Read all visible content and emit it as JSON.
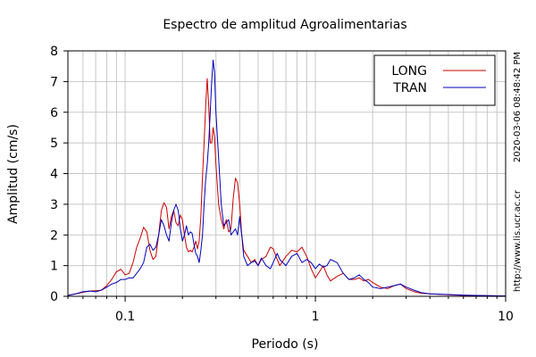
{
  "chart_data": {
    "type": "line",
    "title": "Espectro de amplitud Agroalimentarias",
    "xlabel": "Periodo (s)",
    "ylabel": "Amplitud (cm/s)",
    "x_scale": "log",
    "xlim": [
      0.05,
      10
    ],
    "ylim": [
      0,
      8
    ],
    "x_ticks": [
      {
        "value": 0.1,
        "label": "0.1"
      },
      {
        "value": 1,
        "label": "1"
      },
      {
        "value": 10,
        "label": "10"
      }
    ],
    "y_ticks": [
      0,
      1,
      2,
      3,
      4,
      5,
      6,
      7,
      8
    ],
    "grid": true,
    "legend_position": "top-right",
    "side_texts": [
      "2020-03-06 08:48:42 PM",
      "http://www.lis.ucr.ac.cr"
    ],
    "series": [
      {
        "name": "LONG",
        "color": "#cc0000",
        "points": [
          [
            0.05,
            0.03
          ],
          [
            0.055,
            0.08
          ],
          [
            0.06,
            0.13
          ],
          [
            0.065,
            0.17
          ],
          [
            0.07,
            0.18
          ],
          [
            0.075,
            0.2
          ],
          [
            0.08,
            0.35
          ],
          [
            0.085,
            0.55
          ],
          [
            0.09,
            0.8
          ],
          [
            0.095,
            0.88
          ],
          [
            0.1,
            0.7
          ],
          [
            0.105,
            0.75
          ],
          [
            0.11,
            1.1
          ],
          [
            0.115,
            1.6
          ],
          [
            0.12,
            1.9
          ],
          [
            0.125,
            2.25
          ],
          [
            0.13,
            2.1
          ],
          [
            0.135,
            1.5
          ],
          [
            0.14,
            1.2
          ],
          [
            0.145,
            1.3
          ],
          [
            0.15,
            2.0
          ],
          [
            0.155,
            2.8
          ],
          [
            0.16,
            3.05
          ],
          [
            0.165,
            2.9
          ],
          [
            0.17,
            2.2
          ],
          [
            0.175,
            2.6
          ],
          [
            0.18,
            2.8
          ],
          [
            0.185,
            2.4
          ],
          [
            0.19,
            2.3
          ],
          [
            0.195,
            2.65
          ],
          [
            0.2,
            2.5
          ],
          [
            0.205,
            2.0
          ],
          [
            0.21,
            1.6
          ],
          [
            0.215,
            1.45
          ],
          [
            0.22,
            1.5
          ],
          [
            0.225,
            1.45
          ],
          [
            0.23,
            1.6
          ],
          [
            0.235,
            1.8
          ],
          [
            0.24,
            1.55
          ],
          [
            0.245,
            1.8
          ],
          [
            0.25,
            2.6
          ],
          [
            0.255,
            3.9
          ],
          [
            0.26,
            5.0
          ],
          [
            0.265,
            6.2
          ],
          [
            0.27,
            7.1
          ],
          [
            0.275,
            6.2
          ],
          [
            0.28,
            5.0
          ],
          [
            0.285,
            5.0
          ],
          [
            0.29,
            5.5
          ],
          [
            0.295,
            5.2
          ],
          [
            0.3,
            4.3
          ],
          [
            0.31,
            3.0
          ],
          [
            0.32,
            2.5
          ],
          [
            0.33,
            2.2
          ],
          [
            0.34,
            2.5
          ],
          [
            0.35,
            2.1
          ],
          [
            0.36,
            2.2
          ],
          [
            0.37,
            3.2
          ],
          [
            0.38,
            3.85
          ],
          [
            0.39,
            3.7
          ],
          [
            0.4,
            3.0
          ],
          [
            0.41,
            2.0
          ],
          [
            0.42,
            1.5
          ],
          [
            0.44,
            1.3
          ],
          [
            0.46,
            1.1
          ],
          [
            0.48,
            1.2
          ],
          [
            0.5,
            1.0
          ],
          [
            0.52,
            1.2
          ],
          [
            0.55,
            1.3
          ],
          [
            0.58,
            1.6
          ],
          [
            0.6,
            1.55
          ],
          [
            0.63,
            1.2
          ],
          [
            0.65,
            1.0
          ],
          [
            0.7,
            1.3
          ],
          [
            0.75,
            1.5
          ],
          [
            0.8,
            1.45
          ],
          [
            0.85,
            1.6
          ],
          [
            0.9,
            1.3
          ],
          [
            0.95,
            0.9
          ],
          [
            1.0,
            0.6
          ],
          [
            1.05,
            0.8
          ],
          [
            1.1,
            1.0
          ],
          [
            1.15,
            0.7
          ],
          [
            1.2,
            0.5
          ],
          [
            1.3,
            0.65
          ],
          [
            1.4,
            0.75
          ],
          [
            1.5,
            0.55
          ],
          [
            1.6,
            0.55
          ],
          [
            1.7,
            0.6
          ],
          [
            1.8,
            0.5
          ],
          [
            1.9,
            0.55
          ],
          [
            2.0,
            0.45
          ],
          [
            2.2,
            0.3
          ],
          [
            2.4,
            0.25
          ],
          [
            2.6,
            0.35
          ],
          [
            2.8,
            0.4
          ],
          [
            3.0,
            0.25
          ],
          [
            3.3,
            0.15
          ],
          [
            3.6,
            0.1
          ],
          [
            4.0,
            0.08
          ],
          [
            5.0,
            0.05
          ],
          [
            6.0,
            0.03
          ],
          [
            7.0,
            0.02
          ],
          [
            8.0,
            0.02
          ],
          [
            10.0,
            0.01
          ]
        ]
      },
      {
        "name": "TRAN",
        "color": "#0000bb",
        "points": [
          [
            0.05,
            0.03
          ],
          [
            0.055,
            0.08
          ],
          [
            0.06,
            0.15
          ],
          [
            0.065,
            0.17
          ],
          [
            0.07,
            0.15
          ],
          [
            0.075,
            0.2
          ],
          [
            0.08,
            0.3
          ],
          [
            0.085,
            0.4
          ],
          [
            0.09,
            0.45
          ],
          [
            0.095,
            0.55
          ],
          [
            0.1,
            0.55
          ],
          [
            0.105,
            0.6
          ],
          [
            0.11,
            0.6
          ],
          [
            0.115,
            0.75
          ],
          [
            0.12,
            0.9
          ],
          [
            0.125,
            1.1
          ],
          [
            0.13,
            1.6
          ],
          [
            0.135,
            1.7
          ],
          [
            0.14,
            1.5
          ],
          [
            0.145,
            1.6
          ],
          [
            0.15,
            2.0
          ],
          [
            0.155,
            2.5
          ],
          [
            0.16,
            2.3
          ],
          [
            0.165,
            2.0
          ],
          [
            0.17,
            1.8
          ],
          [
            0.175,
            2.4
          ],
          [
            0.18,
            2.8
          ],
          [
            0.185,
            3.0
          ],
          [
            0.19,
            2.8
          ],
          [
            0.195,
            2.2
          ],
          [
            0.2,
            1.8
          ],
          [
            0.205,
            2.0
          ],
          [
            0.21,
            2.3
          ],
          [
            0.215,
            2.0
          ],
          [
            0.22,
            2.1
          ],
          [
            0.225,
            2.05
          ],
          [
            0.23,
            1.7
          ],
          [
            0.235,
            1.4
          ],
          [
            0.24,
            1.3
          ],
          [
            0.245,
            1.1
          ],
          [
            0.25,
            1.5
          ],
          [
            0.255,
            2.0
          ],
          [
            0.26,
            3.0
          ],
          [
            0.265,
            3.8
          ],
          [
            0.27,
            4.3
          ],
          [
            0.275,
            5.0
          ],
          [
            0.28,
            6.0
          ],
          [
            0.285,
            7.0
          ],
          [
            0.29,
            7.7
          ],
          [
            0.295,
            7.3
          ],
          [
            0.3,
            6.0
          ],
          [
            0.31,
            4.5
          ],
          [
            0.32,
            3.0
          ],
          [
            0.33,
            2.3
          ],
          [
            0.34,
            2.4
          ],
          [
            0.35,
            2.5
          ],
          [
            0.36,
            2.0
          ],
          [
            0.37,
            2.1
          ],
          [
            0.38,
            2.2
          ],
          [
            0.39,
            2.0
          ],
          [
            0.4,
            2.6
          ],
          [
            0.41,
            2.0
          ],
          [
            0.42,
            1.3
          ],
          [
            0.44,
            1.0
          ],
          [
            0.46,
            1.1
          ],
          [
            0.48,
            1.15
          ],
          [
            0.5,
            1.0
          ],
          [
            0.52,
            1.25
          ],
          [
            0.55,
            1.0
          ],
          [
            0.58,
            0.9
          ],
          [
            0.6,
            1.1
          ],
          [
            0.63,
            1.4
          ],
          [
            0.65,
            1.2
          ],
          [
            0.7,
            1.0
          ],
          [
            0.75,
            1.3
          ],
          [
            0.8,
            1.4
          ],
          [
            0.85,
            1.1
          ],
          [
            0.9,
            1.2
          ],
          [
            0.95,
            1.1
          ],
          [
            1.0,
            0.9
          ],
          [
            1.05,
            1.05
          ],
          [
            1.1,
            0.95
          ],
          [
            1.15,
            1.0
          ],
          [
            1.2,
            1.2
          ],
          [
            1.3,
            1.1
          ],
          [
            1.4,
            0.75
          ],
          [
            1.5,
            0.55
          ],
          [
            1.6,
            0.6
          ],
          [
            1.7,
            0.7
          ],
          [
            1.8,
            0.55
          ],
          [
            1.9,
            0.45
          ],
          [
            2.0,
            0.3
          ],
          [
            2.2,
            0.25
          ],
          [
            2.4,
            0.3
          ],
          [
            2.6,
            0.35
          ],
          [
            2.8,
            0.4
          ],
          [
            3.0,
            0.3
          ],
          [
            3.3,
            0.2
          ],
          [
            3.6,
            0.12
          ],
          [
            4.0,
            0.08
          ],
          [
            5.0,
            0.06
          ],
          [
            6.0,
            0.04
          ],
          [
            7.0,
            0.03
          ],
          [
            8.0,
            0.02
          ],
          [
            10.0,
            0.01
          ]
        ]
      }
    ]
  }
}
